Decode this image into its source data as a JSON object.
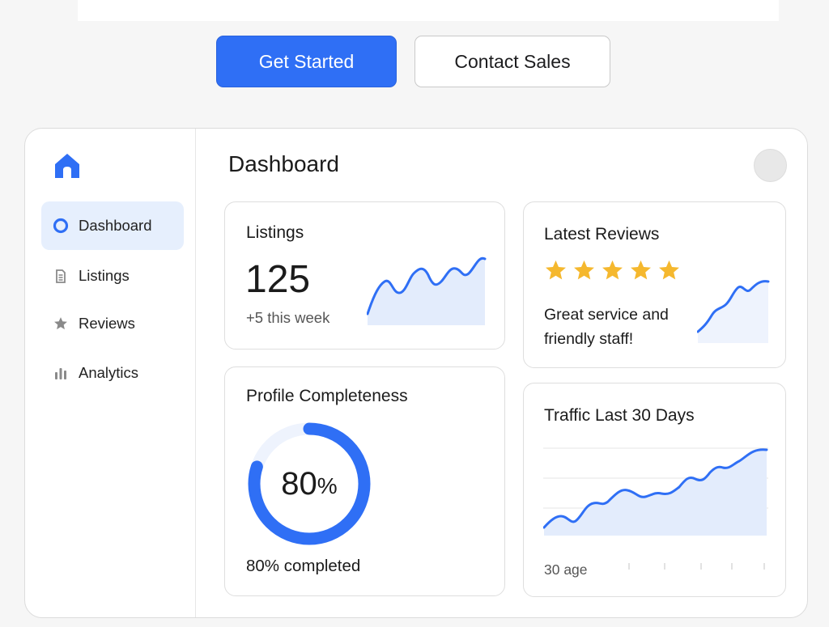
{
  "hero": {
    "primary_button": "Get Started",
    "secondary_button": "Contact Sales"
  },
  "colors": {
    "accent": "#2f6ff5",
    "active_nav_bg": "#e6effd",
    "star": "#f5b82e",
    "chart_fill": "#e3ecfc"
  },
  "sidebar": {
    "logo_icon": "home-icon",
    "items": [
      {
        "label": "Dashboard",
        "icon": "dashboard-dot-icon",
        "active": true
      },
      {
        "label": "Listings",
        "icon": "document-icon",
        "active": false
      },
      {
        "label": "Reviews",
        "icon": "star-icon",
        "active": false
      },
      {
        "label": "Analytics",
        "icon": "bar-chart-icon",
        "active": false
      }
    ]
  },
  "main": {
    "title": "Dashboard",
    "listings": {
      "title": "Listings",
      "value": "125",
      "delta": "+5 this week"
    },
    "reviews": {
      "title": "Latest Reviews",
      "rating": 5,
      "rating_max": 5,
      "quote_line1": "Great service and",
      "quote_line2": "friendly staff!"
    },
    "profile": {
      "title": "Profile Completeness",
      "percent_number": "80",
      "percent_sign": "%",
      "percent_value": 80,
      "caption": "80% completed"
    },
    "traffic": {
      "title": "Traffic Last 30 Days",
      "axis_label": "30 age"
    }
  }
}
